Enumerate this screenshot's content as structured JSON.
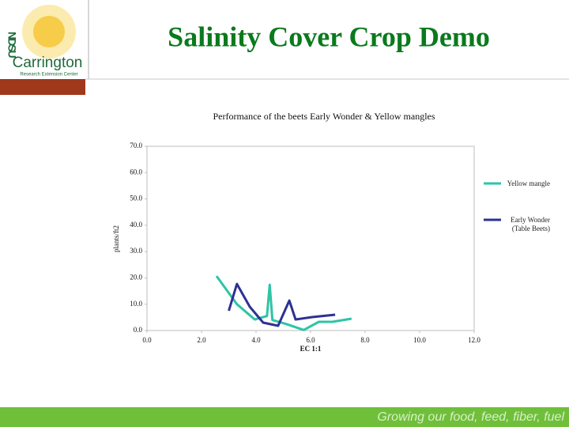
{
  "header": {
    "title": "Salinity Cover Crop Demo",
    "logo": {
      "letters": "NDSU",
      "name": "Carrington",
      "subtitle": "Research Extension Center"
    }
  },
  "footer": {
    "tagline": "Growing our food, feed, fiber, fuel"
  },
  "chart_data": {
    "type": "line",
    "title": "Performance of the beets Early Wonder & Yellow mangles",
    "x_label": "EC 1:1",
    "y_label": "plants/ft2",
    "xlim": [
      0,
      12
    ],
    "xticks": [
      {
        "value": 0,
        "label": "0.0"
      },
      {
        "value": 2,
        "label": "2.0"
      },
      {
        "value": 4,
        "label": "4.0"
      },
      {
        "value": 6,
        "label": "6.0"
      },
      {
        "value": 8,
        "label": "8.0"
      },
      {
        "value": 10,
        "label": "10.0"
      },
      {
        "value": 12,
        "label": "12.0"
      }
    ],
    "ylim": [
      0,
      70
    ],
    "yticks": [
      {
        "value": 0,
        "label": "0.0"
      },
      {
        "value": 10,
        "label": "10.0"
      },
      {
        "value": 20,
        "label": "20.0"
      },
      {
        "value": 30,
        "label": "30.0"
      },
      {
        "value": 40,
        "label": "40.0"
      },
      {
        "value": 50,
        "label": "50.0"
      },
      {
        "value": 60,
        "label": "60.0"
      },
      {
        "value": 70,
        "label": "70.0"
      }
    ],
    "grid": false,
    "legend": "right",
    "series": [
      {
        "name": "Yellow mangle",
        "color": "#2ec4a6",
        "x": [
          2.55,
          3.3,
          3.95,
          4.4,
          4.5,
          4.6,
          5.1,
          5.75,
          6.3,
          6.8,
          7.5
        ],
        "values": [
          20.7,
          10,
          4.2,
          5.5,
          17.4,
          4,
          2.5,
          0.2,
          3.3,
          3.3,
          4.5
        ]
      },
      {
        "name": "Early Wonder (Table Beets)",
        "color": "#2e3192",
        "x": [
          3,
          3.3,
          3.77,
          4.26,
          4.81,
          5.22,
          5.45,
          6.06,
          6.9
        ],
        "values": [
          7.5,
          17.7,
          9,
          3,
          1.8,
          11.4,
          4.2,
          5.1,
          6
        ]
      }
    ]
  }
}
